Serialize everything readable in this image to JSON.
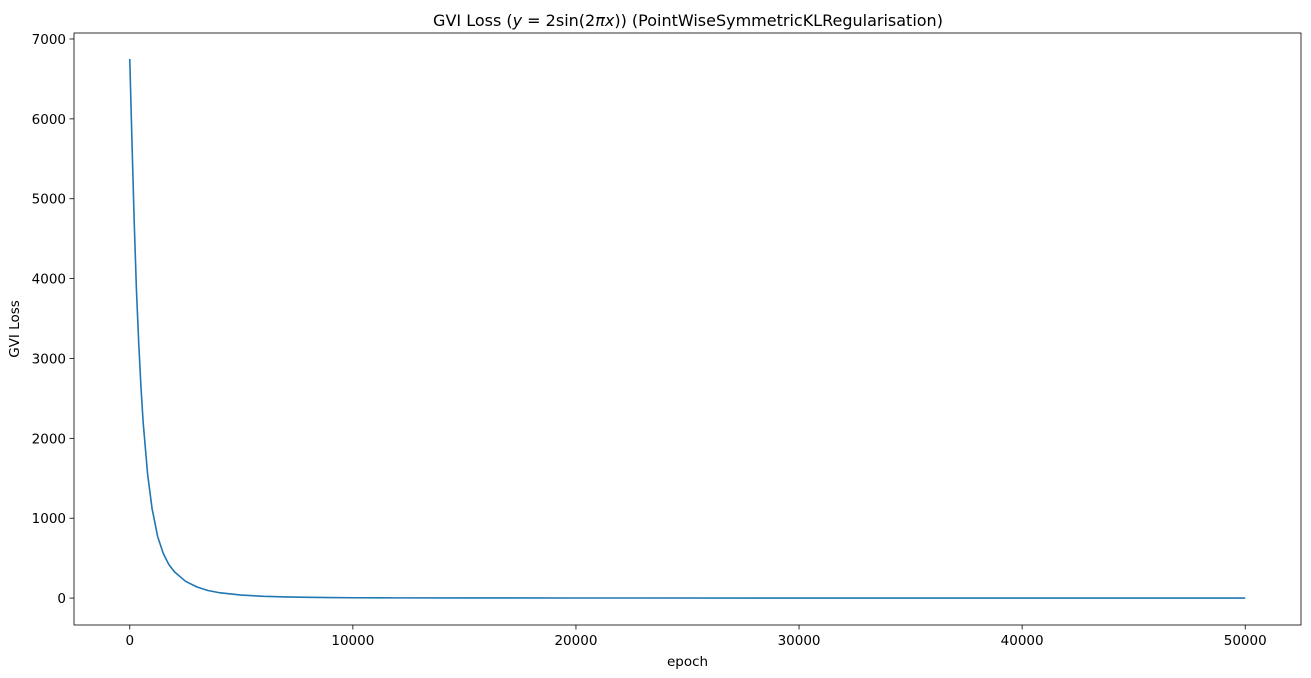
{
  "chart_data": {
    "type": "line",
    "title": "GVI Loss (y = 2sin(2πx)) (PointWiseSymmetricKLRegularisation)",
    "title_parts": {
      "prefix": "GVI Loss (",
      "math": {
        "y": "y",
        "eq": " = 2sin(2",
        "pi": "π",
        "x": "x",
        "close": ")"
      },
      "suffix": ") (PointWiseSymmetricKLRegularisation)"
    },
    "xlabel": "epoch",
    "ylabel": "GVI Loss",
    "xlim": [
      -2500,
      52500
    ],
    "ylim": [
      -337,
      7075
    ],
    "xticks": [
      0,
      10000,
      20000,
      30000,
      40000,
      50000
    ],
    "yticks": [
      0,
      1000,
      2000,
      3000,
      4000,
      5000,
      6000,
      7000
    ],
    "xtick_labels": [
      "0",
      "10000",
      "20000",
      "30000",
      "40000",
      "50000"
    ],
    "ytick_labels": [
      "0",
      "1000",
      "2000",
      "3000",
      "4000",
      "5000",
      "6000",
      "7000"
    ],
    "grid": false,
    "series": [
      {
        "name": "GVI Loss",
        "color": "#1f77b4",
        "x": [
          0,
          100,
          200,
          300,
          400,
          500,
          600,
          800,
          1000,
          1250,
          1500,
          1750,
          2000,
          2500,
          3000,
          3500,
          4000,
          5000,
          6000,
          7000,
          8000,
          9000,
          10000,
          12000,
          15000,
          20000,
          30000,
          40000,
          50000
        ],
        "y": [
          6750,
          5700,
          4700,
          3850,
          3200,
          2650,
          2200,
          1550,
          1120,
          770,
          560,
          420,
          330,
          210,
          140,
          95,
          68,
          38,
          22,
          14,
          9,
          6,
          4,
          2.5,
          1.5,
          1,
          0.5,
          0.3,
          0.2
        ]
      }
    ]
  }
}
